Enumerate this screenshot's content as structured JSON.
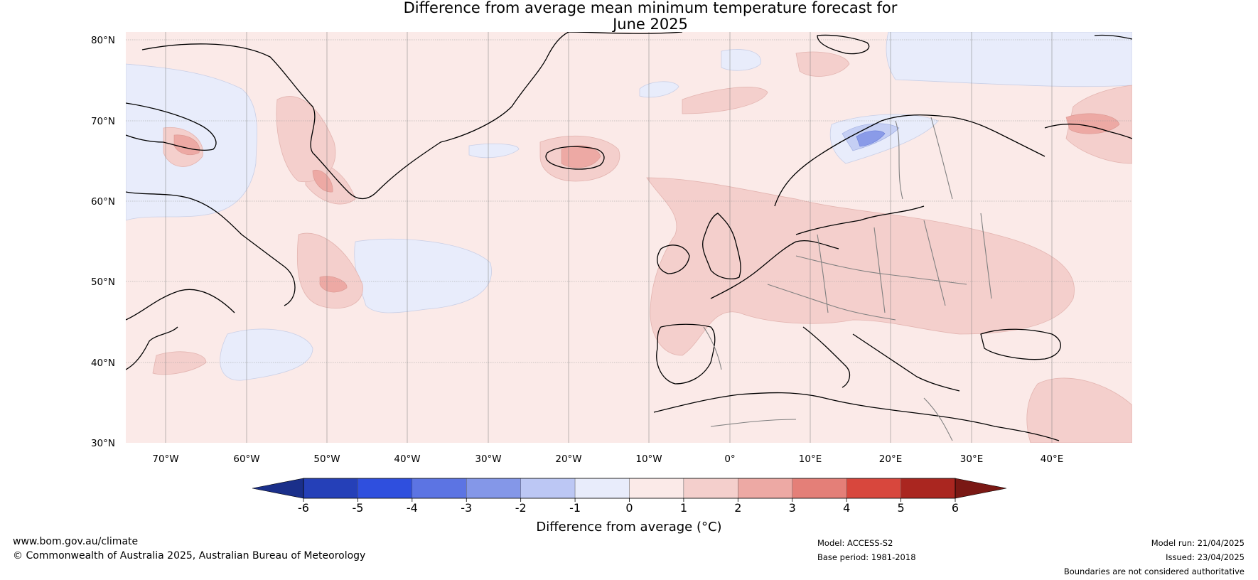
{
  "title_line1": "Difference from average mean minimum temperature forecast for",
  "title_line2": "June 2025",
  "map": {
    "lat_labels": [
      "80°N",
      "70°N",
      "60°N",
      "50°N",
      "40°N",
      "30°N"
    ],
    "lon_labels": [
      "70°W",
      "60°W",
      "50°W",
      "40°W",
      "30°W",
      "20°W",
      "10°W",
      "0°",
      "10°E",
      "20°E",
      "30°E",
      "40°E"
    ],
    "lat_range": [
      30,
      81
    ],
    "lon_range": [
      -75,
      50
    ]
  },
  "colorbar": {
    "title": "Difference from average (°C)",
    "ticks": [
      "-6",
      "-5",
      "-4",
      "-3",
      "-2",
      "-1",
      "0",
      "1",
      "2",
      "3",
      "4",
      "5",
      "6"
    ],
    "colors": [
      "#1a2f8a",
      "#2540b8",
      "#2f4fde",
      "#5c74e3",
      "#8497e8",
      "#bcc7f4",
      "#e8ecfb",
      "#fbeae8",
      "#f4cfcc",
      "#eda9a4",
      "#e47f78",
      "#d8473d",
      "#aa2620",
      "#7a1814"
    ]
  },
  "footer": {
    "website": "www.bom.gov.au/climate",
    "copyright": "© Commonwealth of Australia 2025, Australian Bureau of Meteorology",
    "model": "Model: ACCESS-S2",
    "base_period": "Base period: 1981-2018",
    "model_run": "Model run: 21/04/2025",
    "issued": "Issued: 23/04/2025",
    "disclaimer": "Boundaries are not considered authoritative"
  }
}
